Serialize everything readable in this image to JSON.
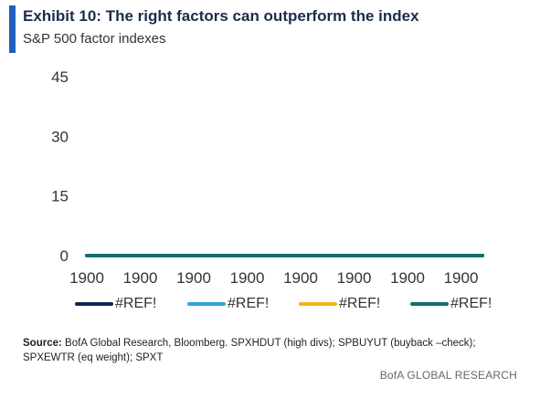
{
  "header": {
    "title": "Exhibit 10: The right factors can outperform the index",
    "subtitle": "S&P 500 factor indexes"
  },
  "colors": {
    "accent": "#1f5fbf",
    "series": [
      "#0f2557",
      "#2ea3dc",
      "#f0b514",
      "#116e70"
    ]
  },
  "chart_data": {
    "type": "line",
    "title": "",
    "xlabel": "",
    "ylabel": "",
    "ylim": [
      0,
      45
    ],
    "y_ticks": [
      "45",
      "30",
      "15",
      "0"
    ],
    "x_ticks": [
      "1900",
      "1900",
      "1900",
      "1900",
      "1900",
      "1900",
      "1900",
      "1900"
    ],
    "grid": false,
    "legend_position": "bottom",
    "series": [
      {
        "name": "#REF!",
        "color": "#0f2557",
        "values": [
          0,
          0,
          0,
          0,
          0,
          0,
          0,
          0
        ]
      },
      {
        "name": "#REF!",
        "color": "#2ea3dc",
        "values": [
          0,
          0,
          0,
          0,
          0,
          0,
          0,
          0
        ]
      },
      {
        "name": "#REF!",
        "color": "#f0b514",
        "values": [
          0,
          0,
          0,
          0,
          0,
          0,
          0,
          0
        ]
      },
      {
        "name": "#REF!",
        "color": "#116e70",
        "values": [
          0,
          0,
          0,
          0,
          0,
          0,
          0,
          0
        ]
      }
    ]
  },
  "legend": {
    "labels": [
      "#REF!",
      "#REF!",
      "#REF!",
      "#REF!"
    ]
  },
  "footer": {
    "source_label": "Source:",
    "source_text": " BofA Global Research, Bloomberg. SPXHDUT (high divs); SPBUYUT (buyback –check); SPXEWTR (eq weight); SPXT",
    "brand": "BofA GLOBAL RESEARCH"
  }
}
